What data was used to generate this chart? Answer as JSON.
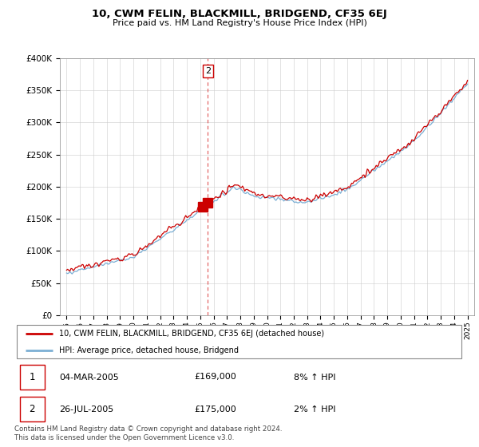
{
  "title": "10, CWM FELIN, BLACKMILL, BRIDGEND, CF35 6EJ",
  "subtitle": "Price paid vs. HM Land Registry's House Price Index (HPI)",
  "legend_line1": "10, CWM FELIN, BLACKMILL, BRIDGEND, CF35 6EJ (detached house)",
  "legend_line2": "HPI: Average price, detached house, Bridgend",
  "transaction1_date": "04-MAR-2005",
  "transaction1_price": "£169,000",
  "transaction1_hpi": "8% ↑ HPI",
  "transaction2_date": "26-JUL-2005",
  "transaction2_price": "£175,000",
  "transaction2_hpi": "2% ↑ HPI",
  "footnote": "Contains HM Land Registry data © Crown copyright and database right 2024.\nThis data is licensed under the Open Government Licence v3.0.",
  "hpi_color": "#7bafd4",
  "price_color": "#cc0000",
  "vline_color": "#dd4444",
  "marker1_year": 2005.17,
  "marker2_year": 2005.57,
  "marker1_price": 169000,
  "marker2_price": 175000,
  "ylim_min": 0,
  "ylim_max": 400000,
  "xlim_min": 1994.5,
  "xlim_max": 2025.5
}
